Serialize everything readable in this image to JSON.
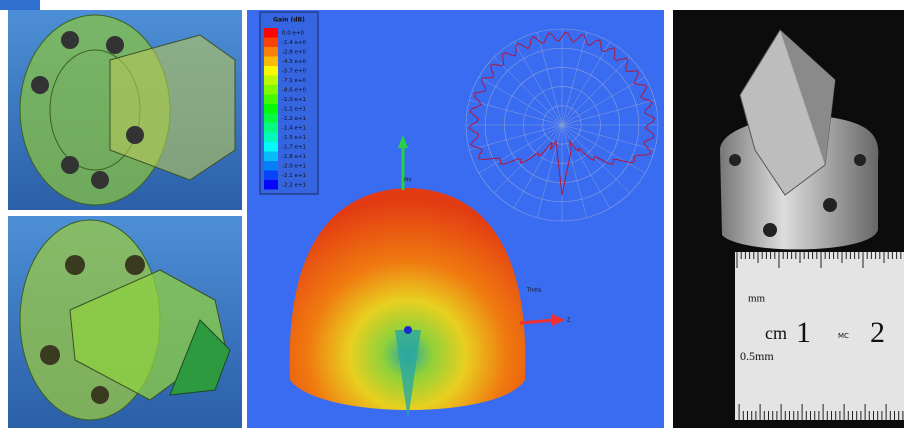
{
  "panels": {
    "simulation": {
      "legend": {
        "title": "Gain (dB)",
        "labels": [
          "0.0 e+0",
          "-1.4 e+0",
          "-2.8 e+0",
          "-4.3 e+0",
          "-5.7 e+0",
          "-7.1 e+0",
          "-8.6 e+0",
          "-1.0 e+1",
          "-1.1 e+1",
          "-1.2 e+1",
          "-1.4 e+1",
          "-1.5 e+1",
          "-1.7 e+1",
          "-1.8 e+1",
          "-2.0 e+1",
          "-2.1 e+1",
          "-2.2 e+1"
        ]
      },
      "axes": {
        "phi": "Phi",
        "theta": "Theta",
        "z": "Z"
      }
    },
    "photo": {
      "ruler": {
        "mm": "mm",
        "cm": "cm",
        "one": "1",
        "logo": "MC",
        "two": "2",
        "half_mm": "0.5mm"
      }
    }
  }
}
